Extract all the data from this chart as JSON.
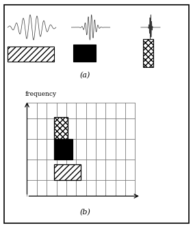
{
  "fig_width": 2.82,
  "fig_height": 3.33,
  "dpi": 100,
  "background_color": "#ffffff",
  "label_a": "(a)",
  "label_b": "(b)",
  "freq_label": "frequency"
}
